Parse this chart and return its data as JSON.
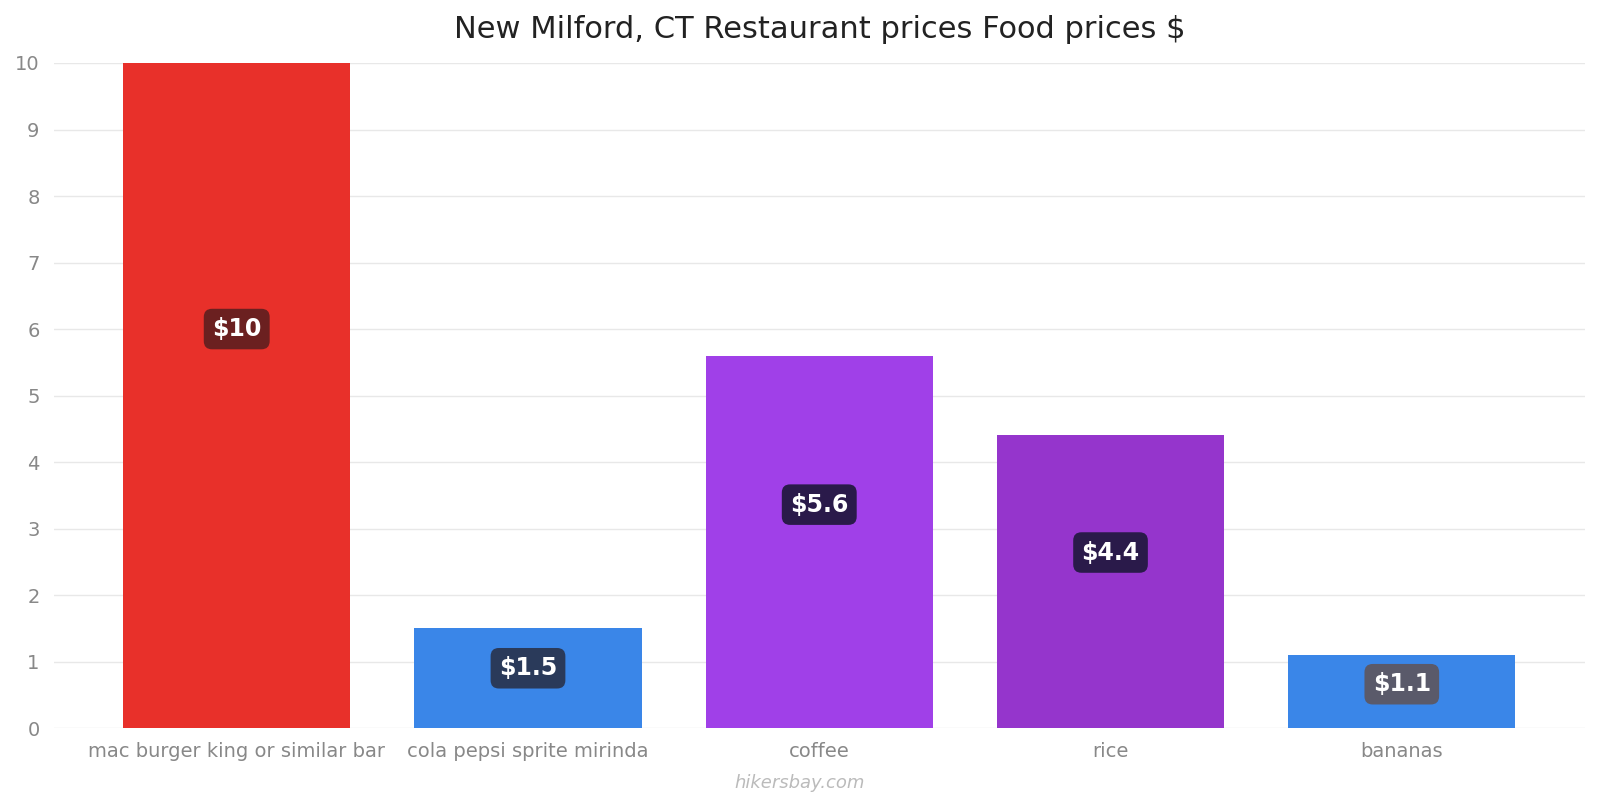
{
  "title": "New Milford, CT Restaurant prices Food prices $",
  "categories": [
    "mac burger king or similar bar",
    "cola pepsi sprite mirinda",
    "coffee",
    "rice",
    "bananas"
  ],
  "values": [
    10,
    1.5,
    5.6,
    4.4,
    1.1
  ],
  "bar_colors": [
    "#e8302a",
    "#3a86e8",
    "#a040e8",
    "#9535cc",
    "#3a86e8"
  ],
  "label_texts": [
    "$10",
    "$1.5",
    "$5.6",
    "$4.4",
    "$1.1"
  ],
  "label_bg_colors": [
    "#6b2020",
    "#2a3a5a",
    "#2a1a4a",
    "#2a1a4a",
    "#5a5a6a"
  ],
  "ylim": [
    0,
    10
  ],
  "yticks": [
    0,
    1,
    2,
    3,
    4,
    5,
    6,
    7,
    8,
    9,
    10
  ],
  "background_color": "#ffffff",
  "grid_color": "#e8e8e8",
  "watermark": "hikersbay.com",
  "title_fontsize": 22,
  "tick_fontsize": 14,
  "label_fontsize": 17,
  "bar_width": 0.78
}
